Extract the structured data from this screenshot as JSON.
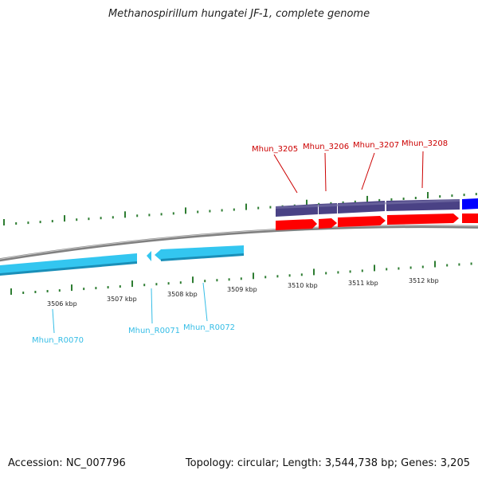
{
  "title": "Methanospirillum hungatei JF-1, complete genome",
  "footer": {
    "accession": "Accession: NC_007796",
    "summary": "Topology: circular; Length: 3,544,738 bp; Genes: 3,205"
  },
  "scale_labels": [
    "3506 kbp",
    "3507 kbp",
    "3508 kbp",
    "3509 kbp",
    "3510 kbp",
    "3511 kbp",
    "3512 kbp"
  ],
  "gene_labels_top": [
    "Mhun_3205",
    "Mhun_3206",
    "Mhun_3207",
    "Mhun_3208"
  ],
  "gene_labels_bottom": [
    "Mhun_R0070",
    "Mhun_R0071",
    "Mhun_R0072"
  ],
  "colors": {
    "background": "#ffffff",
    "backbone": "#808080",
    "tick_green": "#2e7d32",
    "cds_red": "#ff0000",
    "cds_navy": "#4a4285",
    "cds_blue": "#0000ff",
    "rna_cyan": "#33c6f0",
    "label_red": "#cc0000",
    "label_cyan": "#35bde6"
  }
}
